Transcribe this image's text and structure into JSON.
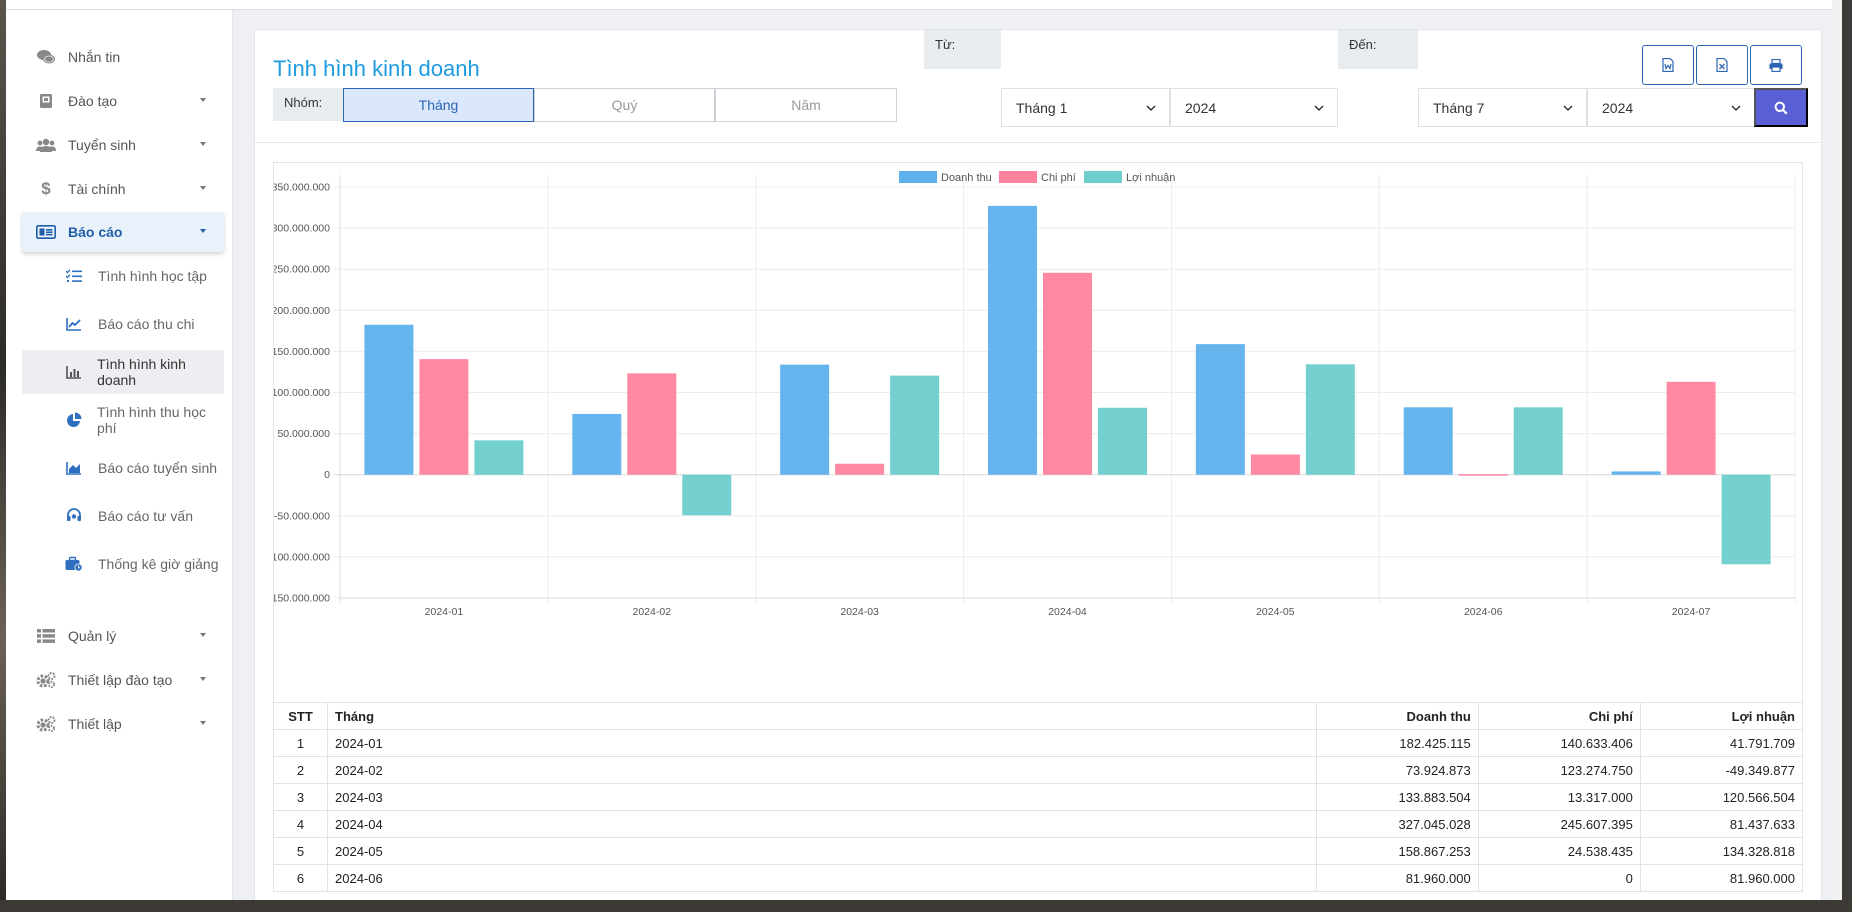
{
  "sidebar": {
    "items": [
      {
        "label": "Nhắn tin",
        "icon": "chat-icon"
      },
      {
        "label": "Đào tạo",
        "icon": "book-icon"
      },
      {
        "label": "Tuyển sinh",
        "icon": "users-icon"
      },
      {
        "label": "Tài chính",
        "icon": "dollar-icon"
      },
      {
        "label": "Báo cáo",
        "icon": "report-icon"
      },
      {
        "label": "Quản lý",
        "icon": "list-icon"
      },
      {
        "label": "Thiết lập đào tạo",
        "icon": "gears-icon"
      },
      {
        "label": "Thiết lập",
        "icon": "gears-icon"
      }
    ],
    "report_sub": [
      {
        "label": "Tình hình học tập",
        "icon": "tasks-icon"
      },
      {
        "label": "Báo cáo thu chi",
        "icon": "line-chart-icon"
      },
      {
        "label": "Tình hình kinh doanh",
        "icon": "bar-chart-icon"
      },
      {
        "label": "Tình hình thu học phí",
        "icon": "pie-chart-icon"
      },
      {
        "label": "Báo cáo tuyển sinh",
        "icon": "area-chart-icon"
      },
      {
        "label": "Báo cáo tư vấn",
        "icon": "headset-icon"
      },
      {
        "label": "Thống kê giờ giảng",
        "icon": "briefcase-clock-icon"
      }
    ]
  },
  "page": {
    "title": "Tình hình kinh doanh",
    "export_buttons": [
      "word-icon",
      "excel-icon",
      "print-icon"
    ]
  },
  "filters": {
    "group_label": "Nhóm:",
    "group_options": [
      "Tháng",
      "Quý",
      "Năm"
    ],
    "group_selected": "Tháng",
    "from_label": "Từ:",
    "from_month": "Tháng 1",
    "from_year": "2024",
    "to_label": "Đến:",
    "to_month": "Tháng 7",
    "to_year": "2024"
  },
  "colors": {
    "doanh_thu": "#5eb0ec",
    "chi_phi": "#ff839c",
    "loi_nhuan": "#6dcdcb",
    "accent": "#1e9be0",
    "search": "#5b5fd6"
  },
  "chart_data": {
    "type": "bar",
    "categories": [
      "2024-01",
      "2024-02",
      "2024-03",
      "2024-04",
      "2024-05",
      "2024-06",
      "2024-07"
    ],
    "series": [
      {
        "name": "Doanh thu",
        "values": [
          182425115,
          73924873,
          133883504,
          327045028,
          158867253,
          81960000,
          4000000
        ]
      },
      {
        "name": "Chi phí",
        "values": [
          140633406,
          123274750,
          13317000,
          245607395,
          24538435,
          0,
          113000000
        ]
      },
      {
        "name": "Lợi nhuận",
        "values": [
          41791709,
          -49349877,
          120566504,
          81437633,
          134328818,
          81960000,
          -109000000
        ]
      }
    ],
    "ylim": [
      -150000000,
      350000000
    ],
    "ytick_step": 50000000,
    "ytick_labels": [
      "350.000.000",
      "300.000.000",
      "250.000.000",
      "200.000.000",
      "150.000.000",
      "100.000.000",
      "50.000.000",
      "0",
      "-50.000.000",
      "-100.000.000",
      "-150.000.000"
    ],
    "legend": "top-center",
    "grid": true
  },
  "table": {
    "headers": [
      "STT",
      "Tháng",
      "Doanh thu",
      "Chi phí",
      "Lợi nhuận"
    ],
    "rows": [
      [
        "1",
        "2024-01",
        "182.425.115",
        "140.633.406",
        "41.791.709"
      ],
      [
        "2",
        "2024-02",
        "73.924.873",
        "123.274.750",
        "-49.349.877"
      ],
      [
        "3",
        "2024-03",
        "133.883.504",
        "13.317.000",
        "120.566.504"
      ],
      [
        "4",
        "2024-04",
        "327.045.028",
        "245.607.395",
        "81.437.633"
      ],
      [
        "5",
        "2024-05",
        "158.867.253",
        "24.538.435",
        "134.328.818"
      ],
      [
        "6",
        "2024-06",
        "81.960.000",
        "0",
        "81.960.000"
      ]
    ]
  }
}
